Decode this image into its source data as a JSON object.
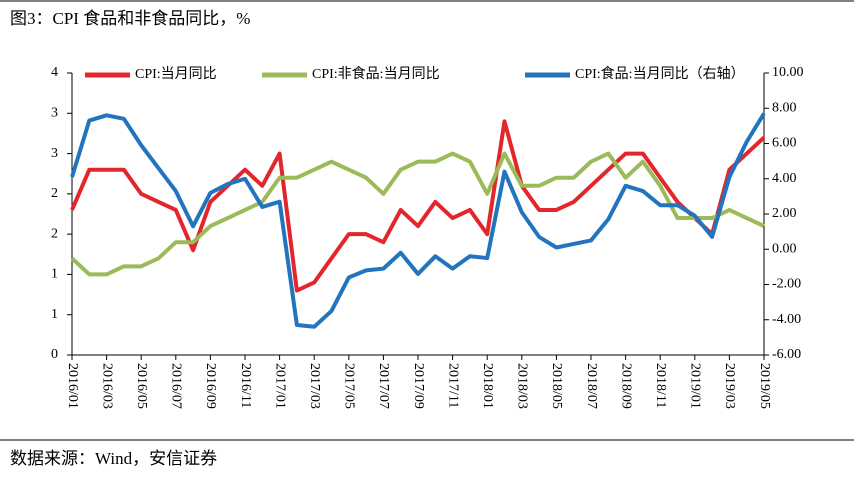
{
  "chart_data": {
    "type": "line",
    "title": "图3：CPI 食品和非食品同比，%",
    "source": "数据来源：Wind，安信证券",
    "categories": [
      "2016/01",
      null,
      "2016/03",
      null,
      "2016/05",
      null,
      "2016/07",
      null,
      "2016/09",
      null,
      "2016/11",
      null,
      "2017/01",
      null,
      "2017/03",
      null,
      "2017/05",
      null,
      "2017/07",
      null,
      "2017/09",
      null,
      "2017/11",
      null,
      "2018/01",
      null,
      "2018/03",
      null,
      "2018/05",
      null,
      "2018/07",
      null,
      "2018/09",
      null,
      "2018/11",
      null,
      "2019/01",
      null,
      "2019/03",
      null,
      "2019/05"
    ],
    "series": [
      {
        "name": "CPI:当月同比",
        "color": "#e3262b",
        "values": [
          1.8,
          2.3,
          2.3,
          2.3,
          2.0,
          1.9,
          1.8,
          1.3,
          1.9,
          2.1,
          2.3,
          2.1,
          2.5,
          0.8,
          0.9,
          1.2,
          1.5,
          1.5,
          1.4,
          1.8,
          1.6,
          1.9,
          1.7,
          1.8,
          1.5,
          2.9,
          2.1,
          1.8,
          1.8,
          1.9,
          2.1,
          2.3,
          2.5,
          2.5,
          2.2,
          1.9,
          1.7,
          1.5,
          2.3,
          2.5,
          2.7
        ]
      },
      {
        "name": "CPI:非食品:当月同比",
        "color": "#9bbb59",
        "values": [
          1.2,
          1.0,
          1.0,
          1.1,
          1.1,
          1.2,
          1.4,
          1.4,
          1.6,
          1.7,
          1.8,
          1.9,
          2.2,
          2.2,
          2.3,
          2.4,
          2.3,
          2.2,
          2.0,
          2.3,
          2.4,
          2.4,
          2.5,
          2.4,
          2.0,
          2.5,
          2.1,
          2.1,
          2.2,
          2.2,
          2.4,
          2.5,
          2.2,
          2.4,
          2.1,
          1.7,
          1.7,
          1.7,
          1.8,
          1.7,
          1.6
        ]
      },
      {
        "name": "CPI:食品:当月同比（右轴）",
        "color": "#2374be",
        "axis": "y2",
        "values": [
          4.1,
          7.3,
          7.6,
          7.4,
          5.9,
          4.6,
          3.3,
          1.3,
          3.2,
          3.7,
          4.0,
          2.4,
          2.7,
          -4.3,
          -4.4,
          -3.5,
          -1.6,
          -1.2,
          -1.1,
          -0.2,
          -1.4,
          -0.4,
          -1.1,
          -0.4,
          -0.5,
          4.4,
          2.1,
          0.7,
          0.1,
          0.3,
          0.5,
          1.7,
          3.6,
          3.3,
          2.5,
          2.5,
          1.9,
          0.7,
          4.1,
          6.1,
          7.7
        ]
      }
    ],
    "ylim": [
      0,
      3.5
    ],
    "yticks": [
      0,
      {
        "value": 0.5,
        "label": "1"
      },
      1,
      {
        "value": 1.5,
        "label": "2"
      },
      2,
      {
        "value": 2.5,
        "label": "3"
      },
      3,
      {
        "value": 3.5,
        "label": "4"
      }
    ],
    "y2lim": [
      -6,
      10
    ],
    "y2ticks": [
      {
        "value": -6,
        "label": "-6.00"
      },
      {
        "value": -4,
        "label": "-4.00"
      },
      {
        "value": -2,
        "label": "-2.00"
      },
      {
        "value": 0,
        "label": "0.00"
      },
      {
        "value": 2,
        "label": "2.00"
      },
      {
        "value": 4,
        "label": "4.00"
      },
      {
        "value": 6,
        "label": "6.00"
      },
      {
        "value": 8,
        "label": "8.00"
      },
      {
        "value": 10,
        "label": "10.00"
      }
    ]
  }
}
